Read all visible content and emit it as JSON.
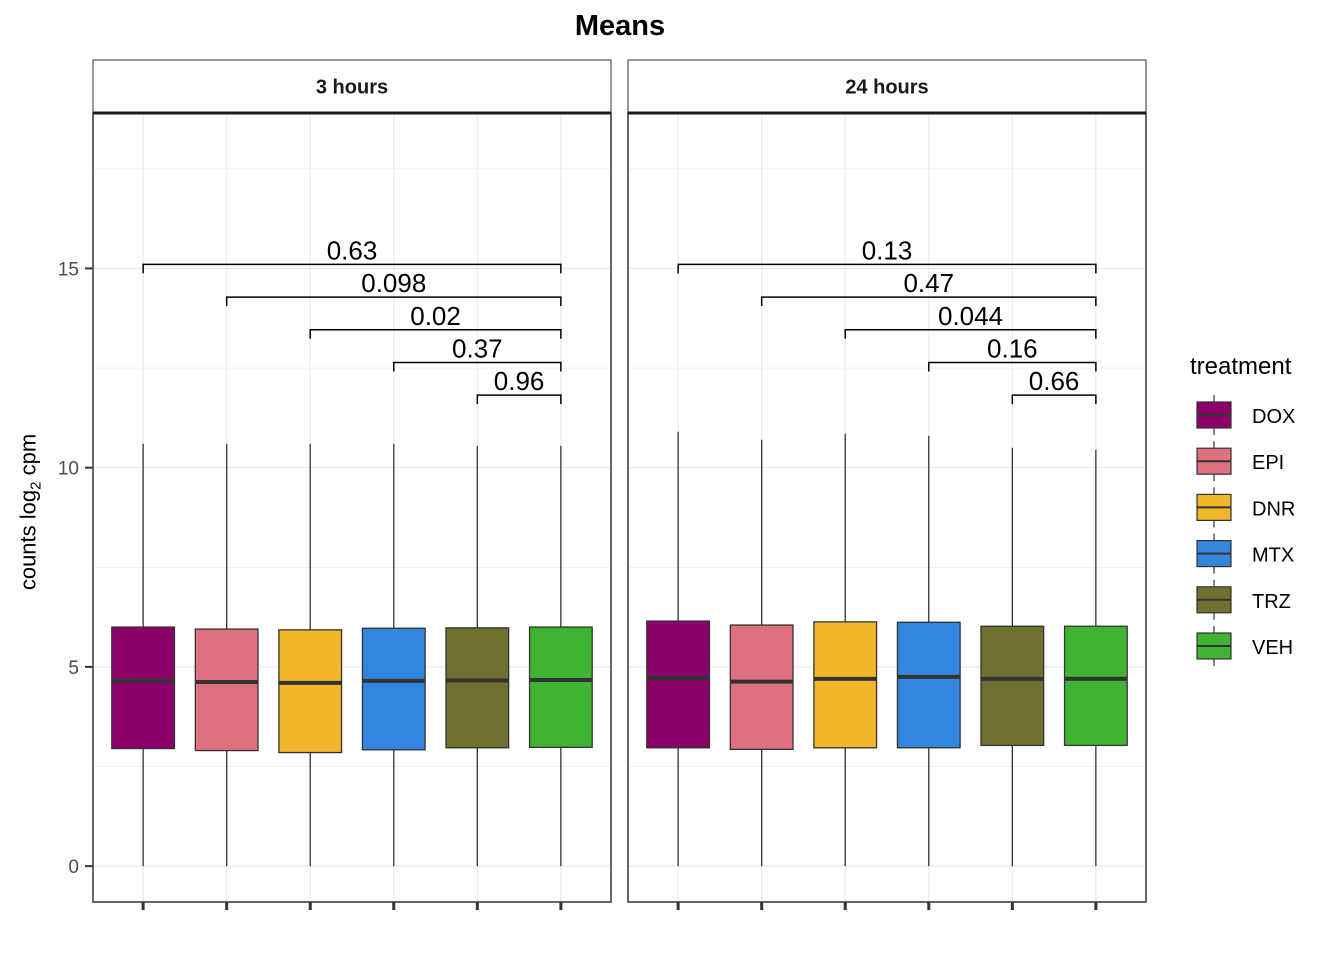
{
  "chart_data": {
    "type": "boxplot",
    "title": "Means",
    "ylabel_main": "counts log",
    "ylabel_sub": "2",
    "ylabel_tail": " cpm",
    "xlabel": "",
    "ylim": [
      -0.9,
      18.9
    ],
    "yticks": [
      0,
      5,
      10,
      15
    ],
    "grid": true,
    "legend": {
      "title": "treatment",
      "position": "right",
      "items": [
        {
          "name": "DOX",
          "color": "#8B006B"
        },
        {
          "name": "EPI",
          "color": "#DF707E"
        },
        {
          "name": "DNR",
          "color": "#F1B72B"
        },
        {
          "name": "MTX",
          "color": "#3386DD"
        },
        {
          "name": "TRZ",
          "color": "#707031"
        },
        {
          "name": "VEH",
          "color": "#41B333"
        }
      ]
    },
    "panels": [
      {
        "label": "3 hours",
        "boxes": [
          {
            "treatment": "DOX",
            "min": 0,
            "q1": 2.95,
            "median": 4.65,
            "q3": 6.0,
            "max": 10.6
          },
          {
            "treatment": "EPI",
            "min": 0,
            "q1": 2.9,
            "median": 4.62,
            "q3": 5.95,
            "max": 10.6
          },
          {
            "treatment": "DNR",
            "min": 0,
            "q1": 2.85,
            "median": 4.6,
            "q3": 5.93,
            "max": 10.6
          },
          {
            "treatment": "MTX",
            "min": 0,
            "q1": 2.92,
            "median": 4.65,
            "q3": 5.97,
            "max": 10.6
          },
          {
            "treatment": "TRZ",
            "min": 0,
            "q1": 2.97,
            "median": 4.66,
            "q3": 5.98,
            "max": 10.55
          },
          {
            "treatment": "VEH",
            "min": 0,
            "q1": 2.98,
            "median": 4.67,
            "q3": 6.0,
            "max": 10.55
          }
        ],
        "comparisons": [
          {
            "from": 0,
            "to": 5,
            "y": 15.1,
            "label": "0.63"
          },
          {
            "from": 1,
            "to": 5,
            "y": 14.28,
            "label": "0.098"
          },
          {
            "from": 2,
            "to": 5,
            "y": 13.46,
            "label": "0.02"
          },
          {
            "from": 3,
            "to": 5,
            "y": 12.64,
            "label": "0.37"
          },
          {
            "from": 4,
            "to": 5,
            "y": 11.82,
            "label": "0.96"
          }
        ]
      },
      {
        "label": "24 hours",
        "boxes": [
          {
            "treatment": "DOX",
            "min": 0,
            "q1": 2.97,
            "median": 4.72,
            "q3": 6.15,
            "max": 10.9
          },
          {
            "treatment": "EPI",
            "min": 0,
            "q1": 2.93,
            "median": 4.63,
            "q3": 6.05,
            "max": 10.7
          },
          {
            "treatment": "DNR",
            "min": 0,
            "q1": 2.97,
            "median": 4.7,
            "q3": 6.13,
            "max": 10.85
          },
          {
            "treatment": "MTX",
            "min": 0,
            "q1": 2.97,
            "median": 4.75,
            "q3": 6.12,
            "max": 10.8
          },
          {
            "treatment": "TRZ",
            "min": 0,
            "q1": 3.03,
            "median": 4.7,
            "q3": 6.02,
            "max": 10.5
          },
          {
            "treatment": "VEH",
            "min": 0,
            "q1": 3.03,
            "median": 4.7,
            "q3": 6.02,
            "max": 10.45
          }
        ],
        "comparisons": [
          {
            "from": 0,
            "to": 5,
            "y": 15.1,
            "label": "0.13"
          },
          {
            "from": 1,
            "to": 5,
            "y": 14.28,
            "label": "0.47"
          },
          {
            "from": 2,
            "to": 5,
            "y": 13.46,
            "label": "0.044"
          },
          {
            "from": 3,
            "to": 5,
            "y": 12.64,
            "label": "0.16"
          },
          {
            "from": 4,
            "to": 5,
            "y": 11.82,
            "label": "0.66"
          }
        ]
      }
    ]
  }
}
